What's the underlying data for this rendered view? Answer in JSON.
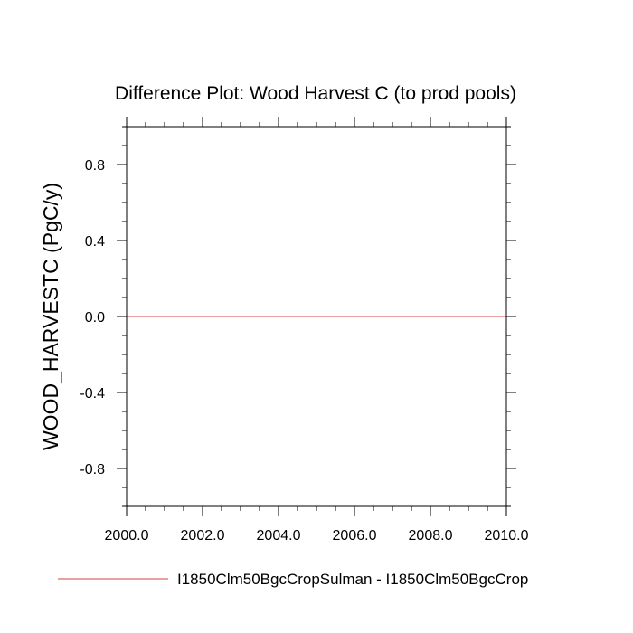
{
  "chart_data": {
    "type": "line",
    "title": "Difference Plot: Wood Harvest C (to prod pools)",
    "xlabel": "",
    "ylabel": "WOOD_HARVESTC  (PgC/y)",
    "xlim": [
      2000.0,
      2010.0
    ],
    "ylim": [
      -1.0,
      1.0
    ],
    "x_ticks": [
      "2000.0",
      "2002.0",
      "2004.0",
      "2006.0",
      "2008.0",
      "2010.0"
    ],
    "y_ticks": [
      "0.8",
      "0.4",
      "0.0",
      "-0.4",
      "-0.8"
    ],
    "grid": false,
    "legend_position": "bottom",
    "series": [
      {
        "name": "I1850Clm50BgcCropSulman - I1850Clm50BgcCrop",
        "color": "#e06666",
        "x": [
          2000.0,
          2010.0
        ],
        "y": [
          0.0,
          0.0
        ]
      }
    ]
  }
}
